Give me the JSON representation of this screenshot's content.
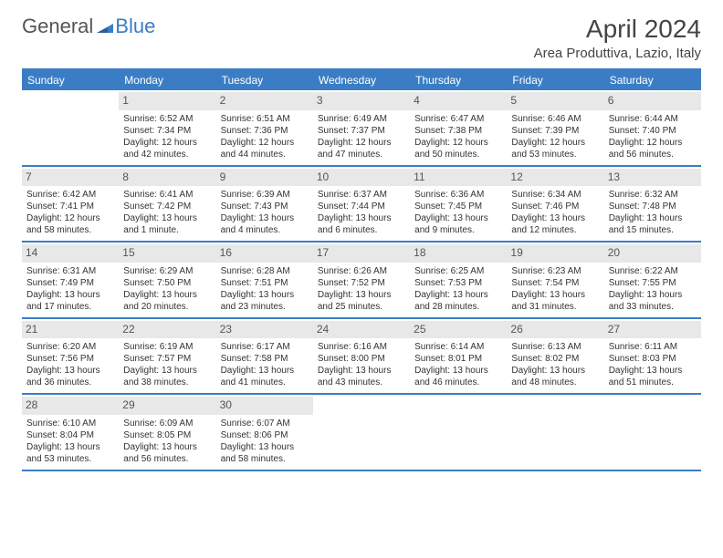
{
  "logo": {
    "part1": "General",
    "part2": "Blue"
  },
  "title": "April 2024",
  "location": "Area Produttiva, Lazio, Italy",
  "colors": {
    "brand": "#3b7dc4",
    "daybar": "#e8e8e8",
    "text": "#333333",
    "bg": "#ffffff"
  },
  "dow": [
    "Sunday",
    "Monday",
    "Tuesday",
    "Wednesday",
    "Thursday",
    "Friday",
    "Saturday"
  ],
  "weeks": [
    [
      {
        "empty": true
      },
      {
        "n": "1",
        "sr": "Sunrise: 6:52 AM",
        "ss": "Sunset: 7:34 PM",
        "d1": "Daylight: 12 hours",
        "d2": "and 42 minutes."
      },
      {
        "n": "2",
        "sr": "Sunrise: 6:51 AM",
        "ss": "Sunset: 7:36 PM",
        "d1": "Daylight: 12 hours",
        "d2": "and 44 minutes."
      },
      {
        "n": "3",
        "sr": "Sunrise: 6:49 AM",
        "ss": "Sunset: 7:37 PM",
        "d1": "Daylight: 12 hours",
        "d2": "and 47 minutes."
      },
      {
        "n": "4",
        "sr": "Sunrise: 6:47 AM",
        "ss": "Sunset: 7:38 PM",
        "d1": "Daylight: 12 hours",
        "d2": "and 50 minutes."
      },
      {
        "n": "5",
        "sr": "Sunrise: 6:46 AM",
        "ss": "Sunset: 7:39 PM",
        "d1": "Daylight: 12 hours",
        "d2": "and 53 minutes."
      },
      {
        "n": "6",
        "sr": "Sunrise: 6:44 AM",
        "ss": "Sunset: 7:40 PM",
        "d1": "Daylight: 12 hours",
        "d2": "and 56 minutes."
      }
    ],
    [
      {
        "n": "7",
        "sr": "Sunrise: 6:42 AM",
        "ss": "Sunset: 7:41 PM",
        "d1": "Daylight: 12 hours",
        "d2": "and 58 minutes."
      },
      {
        "n": "8",
        "sr": "Sunrise: 6:41 AM",
        "ss": "Sunset: 7:42 PM",
        "d1": "Daylight: 13 hours",
        "d2": "and 1 minute."
      },
      {
        "n": "9",
        "sr": "Sunrise: 6:39 AM",
        "ss": "Sunset: 7:43 PM",
        "d1": "Daylight: 13 hours",
        "d2": "and 4 minutes."
      },
      {
        "n": "10",
        "sr": "Sunrise: 6:37 AM",
        "ss": "Sunset: 7:44 PM",
        "d1": "Daylight: 13 hours",
        "d2": "and 6 minutes."
      },
      {
        "n": "11",
        "sr": "Sunrise: 6:36 AM",
        "ss": "Sunset: 7:45 PM",
        "d1": "Daylight: 13 hours",
        "d2": "and 9 minutes."
      },
      {
        "n": "12",
        "sr": "Sunrise: 6:34 AM",
        "ss": "Sunset: 7:46 PM",
        "d1": "Daylight: 13 hours",
        "d2": "and 12 minutes."
      },
      {
        "n": "13",
        "sr": "Sunrise: 6:32 AM",
        "ss": "Sunset: 7:48 PM",
        "d1": "Daylight: 13 hours",
        "d2": "and 15 minutes."
      }
    ],
    [
      {
        "n": "14",
        "sr": "Sunrise: 6:31 AM",
        "ss": "Sunset: 7:49 PM",
        "d1": "Daylight: 13 hours",
        "d2": "and 17 minutes."
      },
      {
        "n": "15",
        "sr": "Sunrise: 6:29 AM",
        "ss": "Sunset: 7:50 PM",
        "d1": "Daylight: 13 hours",
        "d2": "and 20 minutes."
      },
      {
        "n": "16",
        "sr": "Sunrise: 6:28 AM",
        "ss": "Sunset: 7:51 PM",
        "d1": "Daylight: 13 hours",
        "d2": "and 23 minutes."
      },
      {
        "n": "17",
        "sr": "Sunrise: 6:26 AM",
        "ss": "Sunset: 7:52 PM",
        "d1": "Daylight: 13 hours",
        "d2": "and 25 minutes."
      },
      {
        "n": "18",
        "sr": "Sunrise: 6:25 AM",
        "ss": "Sunset: 7:53 PM",
        "d1": "Daylight: 13 hours",
        "d2": "and 28 minutes."
      },
      {
        "n": "19",
        "sr": "Sunrise: 6:23 AM",
        "ss": "Sunset: 7:54 PM",
        "d1": "Daylight: 13 hours",
        "d2": "and 31 minutes."
      },
      {
        "n": "20",
        "sr": "Sunrise: 6:22 AM",
        "ss": "Sunset: 7:55 PM",
        "d1": "Daylight: 13 hours",
        "d2": "and 33 minutes."
      }
    ],
    [
      {
        "n": "21",
        "sr": "Sunrise: 6:20 AM",
        "ss": "Sunset: 7:56 PM",
        "d1": "Daylight: 13 hours",
        "d2": "and 36 minutes."
      },
      {
        "n": "22",
        "sr": "Sunrise: 6:19 AM",
        "ss": "Sunset: 7:57 PM",
        "d1": "Daylight: 13 hours",
        "d2": "and 38 minutes."
      },
      {
        "n": "23",
        "sr": "Sunrise: 6:17 AM",
        "ss": "Sunset: 7:58 PM",
        "d1": "Daylight: 13 hours",
        "d2": "and 41 minutes."
      },
      {
        "n": "24",
        "sr": "Sunrise: 6:16 AM",
        "ss": "Sunset: 8:00 PM",
        "d1": "Daylight: 13 hours",
        "d2": "and 43 minutes."
      },
      {
        "n": "25",
        "sr": "Sunrise: 6:14 AM",
        "ss": "Sunset: 8:01 PM",
        "d1": "Daylight: 13 hours",
        "d2": "and 46 minutes."
      },
      {
        "n": "26",
        "sr": "Sunrise: 6:13 AM",
        "ss": "Sunset: 8:02 PM",
        "d1": "Daylight: 13 hours",
        "d2": "and 48 minutes."
      },
      {
        "n": "27",
        "sr": "Sunrise: 6:11 AM",
        "ss": "Sunset: 8:03 PM",
        "d1": "Daylight: 13 hours",
        "d2": "and 51 minutes."
      }
    ],
    [
      {
        "n": "28",
        "sr": "Sunrise: 6:10 AM",
        "ss": "Sunset: 8:04 PM",
        "d1": "Daylight: 13 hours",
        "d2": "and 53 minutes."
      },
      {
        "n": "29",
        "sr": "Sunrise: 6:09 AM",
        "ss": "Sunset: 8:05 PM",
        "d1": "Daylight: 13 hours",
        "d2": "and 56 minutes."
      },
      {
        "n": "30",
        "sr": "Sunrise: 6:07 AM",
        "ss": "Sunset: 8:06 PM",
        "d1": "Daylight: 13 hours",
        "d2": "and 58 minutes."
      },
      {
        "empty": true
      },
      {
        "empty": true
      },
      {
        "empty": true
      },
      {
        "empty": true
      }
    ]
  ]
}
